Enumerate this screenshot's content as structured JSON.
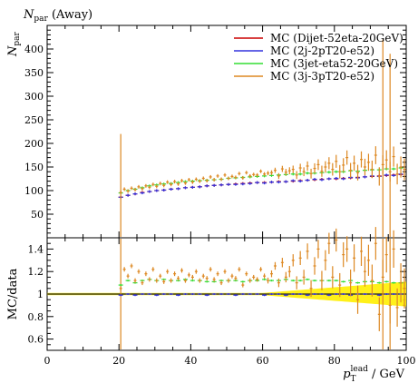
{
  "chart_data": {
    "type": "scatter",
    "title": "N",
    "title_sub": "par",
    "title_suffix": " (Away)",
    "ylabel_main": "N",
    "ylabel_main_sub": "par",
    "ylabel_ratio": "MC/data",
    "xlabel_main": "p",
    "xlabel_sup": "lead",
    "xlabel_sub": "T",
    "xlabel_suffix": " / GeV",
    "xlim": [
      0,
      100
    ],
    "ylim_main": [
      0,
      450
    ],
    "ylim_ratio": [
      0.5,
      1.5
    ],
    "x_ticks": [
      0,
      20,
      40,
      60,
      80,
      100
    ],
    "x_tick_labels": [
      "0",
      "20",
      "40",
      "60",
      "80",
      "100"
    ],
    "y_ticks_main": [
      50,
      100,
      150,
      200,
      250,
      300,
      350,
      400
    ],
    "y_tick_labels_main": [
      "50",
      "100",
      "150",
      "200",
      "250",
      "300",
      "350",
      "400"
    ],
    "y_ticks_ratio": [
      0.6,
      0.8,
      1.0,
      1.2,
      1.4
    ],
    "y_tick_labels_ratio": [
      "0.6",
      "0.8",
      "1",
      "1.2",
      "1.4"
    ],
    "legend_position": "top-right",
    "colors": {
      "dijet": "#cc0000",
      "twoj": "#3333dd",
      "threejet": "#33dd33",
      "threej": "#dd8822",
      "band": "#ffee00"
    },
    "series": [
      {
        "name": "MC (Dijet-52eta-20GeV)",
        "key": "dijet",
        "x": [
          20.5,
          22.5,
          24.5,
          26.5,
          28.5,
          30.5,
          32.5,
          34.5,
          36.5,
          38.5,
          40.5,
          42.5,
          44.5,
          46.5,
          48.5,
          50.5,
          52.5,
          54.5,
          56.5,
          58.5,
          60.5,
          62.5,
          64.5,
          66.5,
          68.5,
          70.5,
          72.5,
          74.5,
          76.5,
          78.5,
          80.5,
          82.5,
          84.5,
          86.5,
          88.5,
          90.5,
          92.5,
          94.5,
          96.5,
          98.5
        ],
        "y": [
          86,
          90,
          93,
          96,
          98,
          100,
          101,
          103,
          104,
          106,
          107,
          108,
          110,
          111,
          112,
          113,
          114,
          115,
          116,
          117,
          117,
          118,
          119,
          119,
          120,
          121,
          122,
          123,
          124,
          125,
          125,
          126,
          127,
          128,
          129,
          130,
          131,
          132,
          133,
          134
        ]
      },
      {
        "name": "MC (2j-2pT20-e52)",
        "key": "twoj",
        "x": [
          20.5,
          22.5,
          24.5,
          26.5,
          28.5,
          30.5,
          32.5,
          34.5,
          36.5,
          38.5,
          40.5,
          42.5,
          44.5,
          46.5,
          48.5,
          50.5,
          52.5,
          54.5,
          56.5,
          58.5,
          60.5,
          62.5,
          64.5,
          66.5,
          68.5,
          70.5,
          72.5,
          74.5,
          76.5,
          78.5,
          80.5,
          82.5,
          84.5,
          86.5,
          88.5,
          90.5,
          92.5,
          94.5,
          96.5,
          98.5
        ],
        "y": [
          86,
          90,
          93,
          95,
          98,
          100,
          101,
          103,
          104,
          106,
          107,
          108,
          110,
          111,
          112,
          113,
          113,
          114,
          115,
          117,
          116,
          118,
          118,
          119,
          121,
          120,
          122,
          124,
          123,
          125,
          126,
          125,
          128,
          127,
          129,
          131,
          130,
          133,
          132,
          135
        ]
      },
      {
        "name": "MC (3jet-eta52-20GeV)",
        "key": "threejet",
        "x": [
          20.5,
          22.5,
          24.5,
          26.5,
          28.5,
          30.5,
          32.5,
          34.5,
          36.5,
          38.5,
          40.5,
          42.5,
          44.5,
          46.5,
          48.5,
          50.5,
          52.5,
          54.5,
          56.5,
          58.5,
          60.5,
          62.5,
          64.5,
          66.5,
          68.5,
          70.5,
          72.5,
          74.5,
          76.5,
          78.5,
          80.5,
          82.5,
          84.5,
          86.5,
          88.5,
          90.5,
          92.5,
          94.5,
          96.5,
          98.5
        ],
        "y": [
          95,
          100,
          103,
          106,
          110,
          112,
          114,
          115,
          117,
          119,
          120,
          121,
          122,
          123,
          124,
          126,
          127,
          128,
          129,
          130,
          131,
          132,
          133,
          134,
          135,
          135,
          137,
          137,
          138,
          139,
          140,
          140,
          142,
          141,
          143,
          144,
          144,
          146,
          146,
          148
        ]
      },
      {
        "name": "MC (3j-3pT20-e52)",
        "key": "threej",
        "x": [
          20.5,
          21.5,
          22.5,
          23.5,
          24.5,
          25.5,
          26.5,
          27.5,
          28.5,
          29.5,
          30.5,
          31.5,
          32.5,
          33.5,
          34.5,
          35.5,
          36.5,
          37.5,
          38.5,
          39.5,
          40.5,
          41.5,
          42.5,
          43.5,
          44.5,
          45.5,
          46.5,
          47.5,
          48.5,
          49.5,
          50.5,
          51.5,
          52.5,
          53.5,
          54.5,
          55.5,
          56.5,
          57.5,
          58.5,
          59.5,
          60.5,
          61.5,
          62.5,
          63.5,
          64.5,
          65.5,
          66.5,
          67.5,
          68.5,
          69.5,
          70.5,
          71.5,
          72.5,
          73.5,
          74.5,
          75.5,
          76.5,
          77.5,
          78.5,
          79.5,
          80.5,
          81.5,
          82.5,
          83.5,
          84.5,
          85.5,
          86.5,
          87.5,
          88.5,
          89.5,
          90.5,
          91.5,
          92.5,
          93.5,
          94.5,
          95.5,
          96.5,
          97.5,
          98.5,
          99.5
        ],
        "y": [
          96,
          103,
          99,
          105,
          102,
          108,
          104,
          110,
          107,
          113,
          109,
          115,
          111,
          118,
          113,
          119,
          114,
          121,
          116,
          123,
          118,
          124,
          120,
          126,
          121,
          129,
          123,
          131,
          124,
          133,
          126,
          130,
          128,
          136,
          127,
          138,
          131,
          134,
          133,
          141,
          135,
          137,
          138,
          143,
          131,
          146,
          139,
          142,
          145,
          133,
          148,
          140,
          152,
          136,
          147,
          155,
          141,
          150,
          158,
          145,
          162,
          140,
          154,
          170,
          143,
          158,
          138,
          166,
          150,
          160,
          145,
          175,
          130,
          155,
          165,
          140,
          172,
          135,
          150,
          145
        ],
        "ratio": [
          1.05,
          1.22,
          1.16,
          1.25,
          1.12,
          1.2,
          1.1,
          1.18,
          1.13,
          1.22,
          1.12,
          1.16,
          1.11,
          1.2,
          1.12,
          1.18,
          1.14,
          1.21,
          1.12,
          1.17,
          1.15,
          1.2,
          1.12,
          1.16,
          1.14,
          1.22,
          1.13,
          1.18,
          1.1,
          1.2,
          1.12,
          1.16,
          1.14,
          1.22,
          1.08,
          1.18,
          1.12,
          1.15,
          1.13,
          1.22,
          1.16,
          1.12,
          1.18,
          1.25,
          1.1,
          1.28,
          1.15,
          1.2,
          1.3,
          1.1,
          1.32,
          1.15,
          1.38,
          1.05,
          1.25,
          1.4,
          1.12,
          1.3,
          1.45,
          1.15,
          1.48,
          1.08,
          1.35,
          1.4,
          1.1,
          1.32,
          0.95,
          1.38,
          1.2,
          1.3,
          1.12,
          1.45,
          0.82,
          1.15,
          1.35,
          0.9,
          1.4,
          0.88,
          1.1,
          1.05
        ]
      }
    ],
    "ratio_twoj": [
      0.99,
      1.0,
      0.99,
      1.0,
      1.0,
      0.99,
      1.0,
      1.0,
      0.99,
      1.0,
      1.0,
      1.0,
      0.99,
      1.0,
      1.0,
      1.0,
      0.99,
      1.0,
      1.0,
      1.0,
      0.99,
      1.0,
      1.0,
      0.99,
      1.0,
      1.0,
      0.99,
      1.0,
      1.0,
      0.99,
      1.0,
      1.0,
      0.99,
      1.0,
      1.0,
      1.0,
      0.99,
      1.0,
      1.0,
      1.0
    ],
    "ratio_threejet": [
      1.08,
      1.12,
      1.1,
      1.12,
      1.13,
      1.12,
      1.13,
      1.12,
      1.12,
      1.13,
      1.12,
      1.12,
      1.11,
      1.11,
      1.12,
      1.12,
      1.12,
      1.11,
      1.12,
      1.12,
      1.13,
      1.12,
      1.12,
      1.13,
      1.12,
      1.12,
      1.13,
      1.12,
      1.12,
      1.12,
      1.12,
      1.11,
      1.12,
      1.1,
      1.11,
      1.11,
      1.1,
      1.11,
      1.1,
      1.1
    ],
    "spikes": [
      {
        "x": 20.5,
        "y": 220,
        "ylow": 0,
        "rlow": 0.5,
        "rhigh": 1.5
      },
      {
        "x": 93.5,
        "y": 420,
        "ylow": 0,
        "rlow": 0.5,
        "rhigh": 1.5
      },
      {
        "x": 95.5,
        "y": 390,
        "ylow": 0,
        "rlow": 0.5,
        "rhigh": 1.5
      }
    ]
  }
}
